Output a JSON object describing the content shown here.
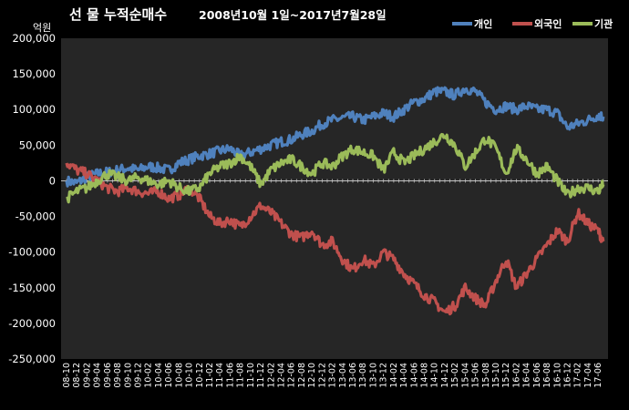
{
  "chart_data": {
    "type": "line",
    "title_prefix": "선 물 누적순매수",
    "title_period": "2008년10월 1일~2017년7월28일",
    "unit_label": "억원",
    "ylim": [
      -250000,
      200000
    ],
    "y_ticks": [
      200000,
      150000,
      100000,
      50000,
      0,
      -50000,
      -100000,
      -150000,
      -200000,
      -250000
    ],
    "y_tick_labels": [
      "200,000",
      "150,000",
      "100,000",
      "50,000",
      "0",
      "-50,000",
      "-100,000",
      "-150,000",
      "-200,000",
      "-250,000"
    ],
    "x_tick_labels": [
      "08-10",
      "08-12",
      "09-02",
      "09-04",
      "09-06",
      "09-08",
      "09-10",
      "09-12",
      "10-02",
      "10-04",
      "10-06",
      "10-08",
      "10-10",
      "10-12",
      "11-02",
      "11-04",
      "11-06",
      "11-08",
      "11-10",
      "11-12",
      "12-02",
      "12-04",
      "12-06",
      "12-08",
      "12-10",
      "12-12",
      "13-02",
      "13-04",
      "13-06",
      "13-08",
      "13-10",
      "13-12",
      "14-02",
      "14-04",
      "14-06",
      "14-08",
      "14-10",
      "14-12",
      "15-02",
      "15-04",
      "15-06",
      "15-08",
      "15-10",
      "15-12",
      "16-02",
      "16-04",
      "16-06",
      "16-08",
      "16-10",
      "16-12",
      "17-02",
      "17-04",
      "17-06"
    ],
    "legend_position": "top-right",
    "series": [
      {
        "name": "개인",
        "color": "#4F81BD",
        "x": [
          "08-10",
          "08-12",
          "09-02",
          "09-04",
          "09-06",
          "09-08",
          "09-10",
          "09-12",
          "10-02",
          "10-04",
          "10-06",
          "10-08",
          "10-10",
          "10-12",
          "11-02",
          "11-04",
          "11-06",
          "11-08",
          "11-10",
          "11-12",
          "12-02",
          "12-04",
          "12-06",
          "12-08",
          "12-10",
          "12-12",
          "13-02",
          "13-04",
          "13-06",
          "13-08",
          "13-10",
          "13-12",
          "14-02",
          "14-04",
          "14-06",
          "14-08",
          "14-10",
          "14-12",
          "15-02",
          "15-04",
          "15-06",
          "15-08",
          "15-10",
          "15-12",
          "16-02",
          "16-04",
          "16-06",
          "16-08",
          "16-10",
          "16-12",
          "17-02",
          "17-04",
          "17-06",
          "17-07"
        ],
        "values": [
          0,
          -3000,
          5000,
          10000,
          12000,
          15000,
          18000,
          15000,
          20000,
          18000,
          15000,
          25000,
          30000,
          35000,
          38000,
          42000,
          45000,
          35000,
          40000,
          45000,
          50000,
          55000,
          58000,
          65000,
          70000,
          80000,
          85000,
          88000,
          90000,
          85000,
          90000,
          95000,
          90000,
          100000,
          110000,
          115000,
          125000,
          125000,
          120000,
          130000,
          125000,
          110000,
          100000,
          105000,
          100000,
          105000,
          100000,
          100000,
          95000,
          75000,
          80000,
          85000,
          92000,
          90000
        ]
      },
      {
        "name": "외국인",
        "color": "#C0504D",
        "x": [
          "08-10",
          "08-12",
          "09-02",
          "09-04",
          "09-06",
          "09-08",
          "09-10",
          "09-12",
          "10-02",
          "10-04",
          "10-06",
          "10-08",
          "10-10",
          "10-12",
          "11-02",
          "11-04",
          "11-06",
          "11-08",
          "11-10",
          "11-12",
          "12-02",
          "12-04",
          "12-06",
          "12-08",
          "12-10",
          "12-12",
          "13-02",
          "13-04",
          "13-06",
          "13-08",
          "13-10",
          "13-12",
          "14-02",
          "14-04",
          "14-06",
          "14-08",
          "14-10",
          "14-12",
          "15-02",
          "15-04",
          "15-06",
          "15-08",
          "15-10",
          "15-12",
          "16-02",
          "16-04",
          "16-06",
          "16-08",
          "16-10",
          "16-12",
          "17-02",
          "17-04",
          "17-06",
          "17-07"
        ],
        "values": [
          25000,
          15000,
          10000,
          0,
          -10000,
          -15000,
          -10000,
          -15000,
          -18000,
          -15000,
          -25000,
          -20000,
          -10000,
          -25000,
          -50000,
          -60000,
          -55000,
          -65000,
          -50000,
          -35000,
          -45000,
          -60000,
          -75000,
          -80000,
          -70000,
          -90000,
          -85000,
          -110000,
          -125000,
          -110000,
          -120000,
          -100000,
          -110000,
          -130000,
          -145000,
          -160000,
          -170000,
          -185000,
          -175000,
          -150000,
          -165000,
          -175000,
          -140000,
          -110000,
          -150000,
          -130000,
          -110000,
          -90000,
          -70000,
          -85000,
          -45000,
          -60000,
          -70000,
          -85000
        ]
      },
      {
        "name": "기관",
        "color": "#9BBB59",
        "x": [
          "08-10",
          "08-12",
          "09-02",
          "09-04",
          "09-06",
          "09-08",
          "09-10",
          "09-12",
          "10-02",
          "10-04",
          "10-06",
          "10-08",
          "10-10",
          "10-12",
          "11-02",
          "11-04",
          "11-06",
          "11-08",
          "11-10",
          "11-12",
          "12-02",
          "12-04",
          "12-06",
          "12-08",
          "12-10",
          "12-12",
          "13-02",
          "13-04",
          "13-06",
          "13-08",
          "13-10",
          "13-12",
          "14-02",
          "14-04",
          "14-06",
          "14-08",
          "14-10",
          "14-12",
          "15-02",
          "15-04",
          "15-06",
          "15-08",
          "15-10",
          "15-12",
          "16-02",
          "16-04",
          "16-06",
          "16-08",
          "16-10",
          "16-12",
          "17-02",
          "17-04",
          "17-06",
          "17-07"
        ],
        "values": [
          -25000,
          -15000,
          -10000,
          0,
          10000,
          5000,
          0,
          5000,
          0,
          -5000,
          0,
          -10000,
          -15000,
          -10000,
          10000,
          20000,
          25000,
          35000,
          20000,
          -5000,
          15000,
          25000,
          30000,
          20000,
          10000,
          25000,
          20000,
          35000,
          45000,
          40000,
          35000,
          15000,
          40000,
          25000,
          35000,
          45000,
          55000,
          65000,
          50000,
          20000,
          40000,
          60000,
          45000,
          10000,
          45000,
          30000,
          10000,
          20000,
          0,
          -20000,
          -10000,
          -10000,
          -15000,
          -5000
        ]
      }
    ]
  }
}
